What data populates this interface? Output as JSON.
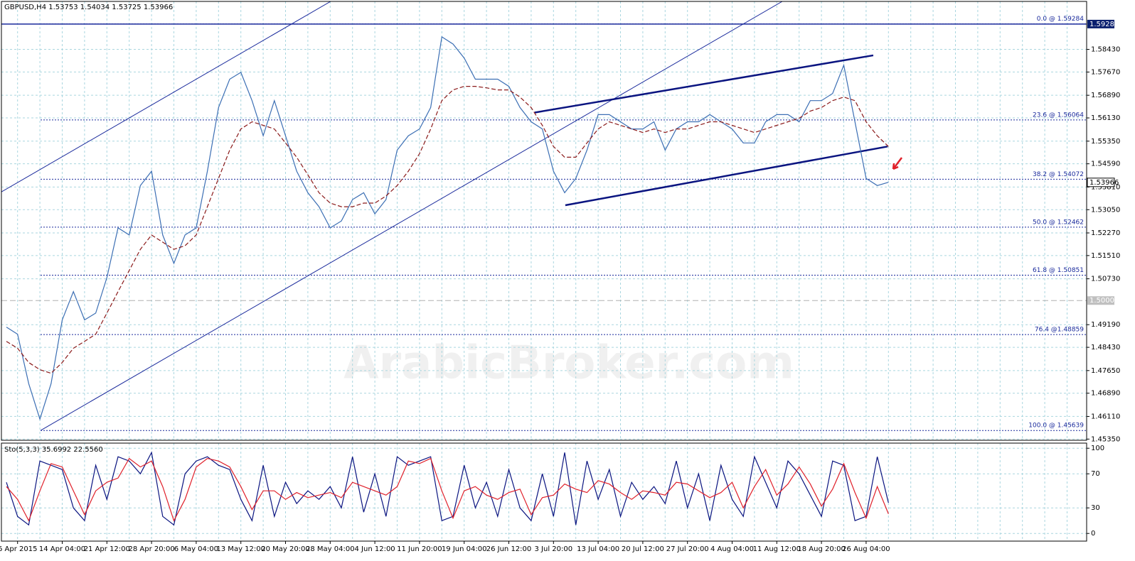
{
  "header": "GBPUSD,H4  1.53753 1.54034 1.53725 1.53966",
  "watermark": "ArabicBroker.com",
  "chart_data": [
    {
      "type": "line",
      "categories": [
        null,
        "6 Apr 2015",
        null,
        null,
        null,
        "14 Apr 04:00",
        null,
        null,
        null,
        "21 Apr 12:00",
        null,
        null,
        null,
        "28 Apr 20:00",
        null,
        null,
        null,
        "6 May 04:00",
        null,
        null,
        null,
        "13 May 12:00",
        null,
        null,
        null,
        "20 May 20:00",
        null,
        null,
        null,
        "28 May 04:00",
        null,
        null,
        null,
        "4 Jun 12:00",
        null,
        null,
        null,
        "11 Jun 20:00",
        null,
        null,
        null,
        "19 Jun 04:00",
        null,
        null,
        null,
        "26 Jun 12:00",
        null,
        null,
        null,
        "3 Jul 20:00",
        null,
        null,
        null,
        "13 Jul 04:00",
        null,
        null,
        null,
        "20 Jul 12:00",
        null,
        null,
        null,
        "27 Jul 20:00",
        null,
        null,
        null,
        "4 Aug 04:00",
        null,
        null,
        null,
        "11 Aug 12:00",
        null,
        null,
        null,
        "18 Aug 20:00",
        null,
        null,
        null,
        "26 Aug 04:00",
        null,
        null
      ],
      "series": [
        {
          "color": "#3c6fb4",
          "values": [
            1.4911,
            1.4887,
            1.4721,
            1.4602,
            1.4721,
            1.4935,
            1.503,
            1.4935,
            1.4958,
            1.5077,
            1.5244,
            1.522,
            1.5386,
            1.5434,
            1.522,
            1.5125,
            1.522,
            1.5244,
            1.5434,
            1.5648,
            1.5743,
            1.5766,
            1.5671,
            1.5553,
            1.5671,
            1.5553,
            1.5434,
            1.5362,
            1.5315,
            1.5244,
            1.5267,
            1.5339,
            1.5362,
            1.5291,
            1.5339,
            1.5505,
            1.5553,
            1.5576,
            1.5648,
            1.5885,
            1.5861,
            1.5814,
            1.5743,
            1.5743,
            1.5743,
            1.5719,
            1.5648,
            1.56,
            1.5576,
            1.5434,
            1.5362,
            1.541,
            1.5505,
            1.5624,
            1.5624,
            1.56,
            1.5576,
            1.5576,
            1.56,
            1.5505,
            1.5576,
            1.56,
            1.56,
            1.5624,
            1.56,
            1.5576,
            1.5529,
            1.5529,
            1.56,
            1.5624,
            1.5624,
            1.56,
            1.5671,
            1.5671,
            1.5695,
            1.579,
            1.56,
            1.541,
            1.5386,
            1.5397
          ]
        },
        {
          "color": "#8b1a1a",
          "dash": true,
          "values": [
            1.4863,
            1.484,
            1.4792,
            1.4768,
            1.4756,
            1.4792,
            1.484,
            1.4863,
            1.4887,
            1.4958,
            1.503,
            1.5101,
            1.5172,
            1.522,
            1.5196,
            1.5172,
            1.5184,
            1.522,
            1.5315,
            1.541,
            1.5505,
            1.5576,
            1.56,
            1.5588,
            1.5576,
            1.5529,
            1.5481,
            1.5422,
            1.5362,
            1.5327,
            1.5315,
            1.5315,
            1.5327,
            1.5327,
            1.5351,
            1.5386,
            1.5434,
            1.5493,
            1.5576,
            1.5671,
            1.5707,
            1.5719,
            1.5719,
            1.5714,
            1.5707,
            1.5707,
            1.5683,
            1.5648,
            1.5588,
            1.5517,
            1.5481,
            1.5481,
            1.5529,
            1.5576,
            1.56,
            1.5588,
            1.5576,
            1.5564,
            1.5576,
            1.5564,
            1.5576,
            1.5576,
            1.5588,
            1.56,
            1.56,
            1.5588,
            1.5576,
            1.5564,
            1.5576,
            1.5588,
            1.56,
            1.5612,
            1.5636,
            1.5648,
            1.5671,
            1.5683,
            1.5671,
            1.56,
            1.5553,
            1.5517
          ]
        }
      ],
      "ylim": [
        1.4531,
        1.6004
      ],
      "yticks": [
        {
          "value": 1.4535,
          "label": "1.45350"
        },
        {
          "value": 1.4611,
          "label": "1.46110"
        },
        {
          "value": 1.4689,
          "label": "1.46890"
        },
        {
          "value": 1.4765,
          "label": "1.47650"
        },
        {
          "value": 1.4843,
          "label": "1.48430"
        },
        {
          "value": 1.4919,
          "label": "1.49190"
        },
        {
          "value": 1.5073,
          "label": "1.50730"
        },
        {
          "value": 1.5151,
          "label": "1.51510"
        },
        {
          "value": 1.5227,
          "label": "1.52270"
        },
        {
          "value": 1.5305,
          "label": "1.53050"
        },
        {
          "value": 1.5381,
          "label": "1.53810"
        },
        {
          "value": 1.5459,
          "label": "1.54590"
        },
        {
          "value": 1.5535,
          "label": "1.55350"
        },
        {
          "value": 1.5613,
          "label": "1.56130"
        },
        {
          "value": 1.5689,
          "label": "1.56890"
        },
        {
          "value": 1.5767,
          "label": "1.57670"
        },
        {
          "value": 1.5843,
          "label": "1.58430"
        }
      ],
      "grid": true,
      "levels": [
        {
          "value": 1.59284,
          "label": "0.0 @ 1.59284"
        },
        {
          "value": 1.56064,
          "label": "23.6 @ 1.56064"
        },
        {
          "value": 1.54072,
          "label": "38.2 @ 1.54072"
        },
        {
          "value": 1.52462,
          "label": "50.0 @ 1.52462"
        },
        {
          "value": 1.50851,
          "label": "61.8 @ 1.50851"
        },
        {
          "value": 1.48859,
          "label": "76.4 @1.48859"
        },
        {
          "value": 1.45639,
          "label": "100.0 @ 1.45639"
        }
      ],
      "high_line": {
        "value": 1.5928,
        "label": "1.59280"
      },
      "round_level": {
        "value": 1.5,
        "label": "1.50000"
      },
      "current_price": {
        "value": 1.53966,
        "label": "1.53966"
      },
      "trendlines": [
        {
          "color": "#1a2a9c",
          "width": 1,
          "points": [
            [
              -0.57,
              1.5362
            ],
            [
              29.04,
              1.6004
            ]
          ]
        },
        {
          "color": "#1a2a9c",
          "width": 1,
          "points": [
            [
              3.06,
              1.4564
            ],
            [
              69.49,
              1.6004
            ]
          ]
        },
        {
          "color": "#0a1480",
          "width": 2.5,
          "points": [
            [
              47.32,
              1.5631
            ],
            [
              77.64,
              1.5823
            ]
          ]
        },
        {
          "color": "#0a1480",
          "width": 2.5,
          "points": [
            [
              50.06,
              1.532
            ],
            [
              78.92,
              1.5517
            ]
          ]
        }
      ]
    },
    {
      "type": "line",
      "title": "Sto(5,3,3) 35.6992 22.5560",
      "series": [
        {
          "color": "#0a1480",
          "values": [
            60,
            20,
            10,
            85,
            80,
            75,
            30,
            15,
            80,
            40,
            90,
            85,
            70,
            95,
            20,
            10,
            70,
            85,
            90,
            80,
            75,
            40,
            15,
            80,
            20,
            60,
            35,
            50,
            40,
            55,
            30,
            90,
            25,
            70,
            20,
            90,
            80,
            85,
            90,
            15,
            20,
            80,
            30,
            60,
            20,
            75,
            30,
            15,
            70,
            20,
            95,
            10,
            85,
            40,
            75,
            20,
            60,
            40,
            55,
            35,
            85,
            30,
            70,
            15,
            80,
            40,
            20,
            90,
            60,
            30,
            85,
            70,
            45,
            20,
            85,
            80,
            15,
            20,
            90,
            36
          ]
        },
        {
          "color": "#e0202a",
          "values": [
            55,
            40,
            15,
            50,
            82,
            78,
            50,
            22,
            50,
            60,
            65,
            88,
            78,
            85,
            55,
            15,
            40,
            78,
            88,
            85,
            78,
            55,
            28,
            50,
            50,
            40,
            48,
            42,
            45,
            48,
            42,
            60,
            55,
            50,
            45,
            55,
            85,
            82,
            88,
            50,
            18,
            50,
            55,
            45,
            40,
            48,
            52,
            22,
            42,
            45,
            58,
            52,
            48,
            62,
            58,
            48,
            40,
            50,
            48,
            45,
            60,
            58,
            50,
            42,
            48,
            60,
            30,
            55,
            75,
            45,
            58,
            78,
            58,
            32,
            52,
            82,
            48,
            18,
            55,
            23
          ]
        }
      ],
      "ylim": [
        -9,
        106
      ],
      "yticks": [
        0,
        30,
        70,
        100
      ]
    }
  ]
}
